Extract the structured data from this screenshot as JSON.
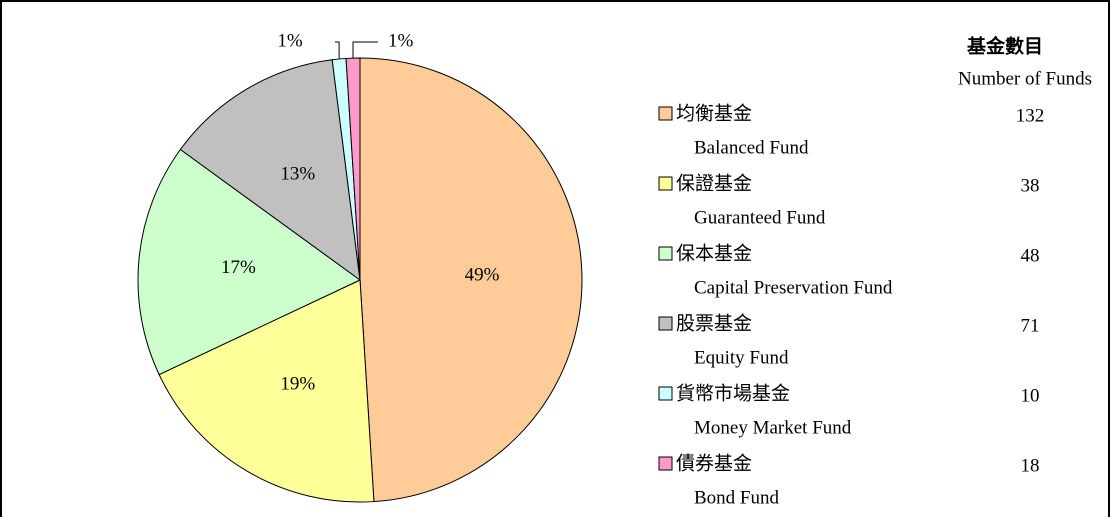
{
  "chart_data": {
    "type": "pie",
    "legend_title": "基金數目",
    "legend_subtitle": "Number of Funds",
    "categories": [
      "均衡基金",
      "保證基金",
      "保本基金",
      "股票基金",
      "貨幣市場基金",
      "債券基金"
    ],
    "categories_en": [
      "Balanced Fund",
      "Guaranteed Fund",
      "Capital Preservation Fund",
      "Equity Fund",
      "Money Market Fund",
      "Bond Fund"
    ],
    "values": [
      49,
      19,
      17,
      13,
      1,
      1
    ],
    "value_labels": [
      "49%",
      "19%",
      "17%",
      "13%",
      "1%",
      "1%"
    ],
    "counts": [
      132,
      38,
      48,
      71,
      10,
      18
    ],
    "colors": [
      "#FFCC99",
      "#FFFF99",
      "#CCFFCC",
      "#C0C0C0",
      "#CCFFFF",
      "#FF99CC"
    ]
  }
}
